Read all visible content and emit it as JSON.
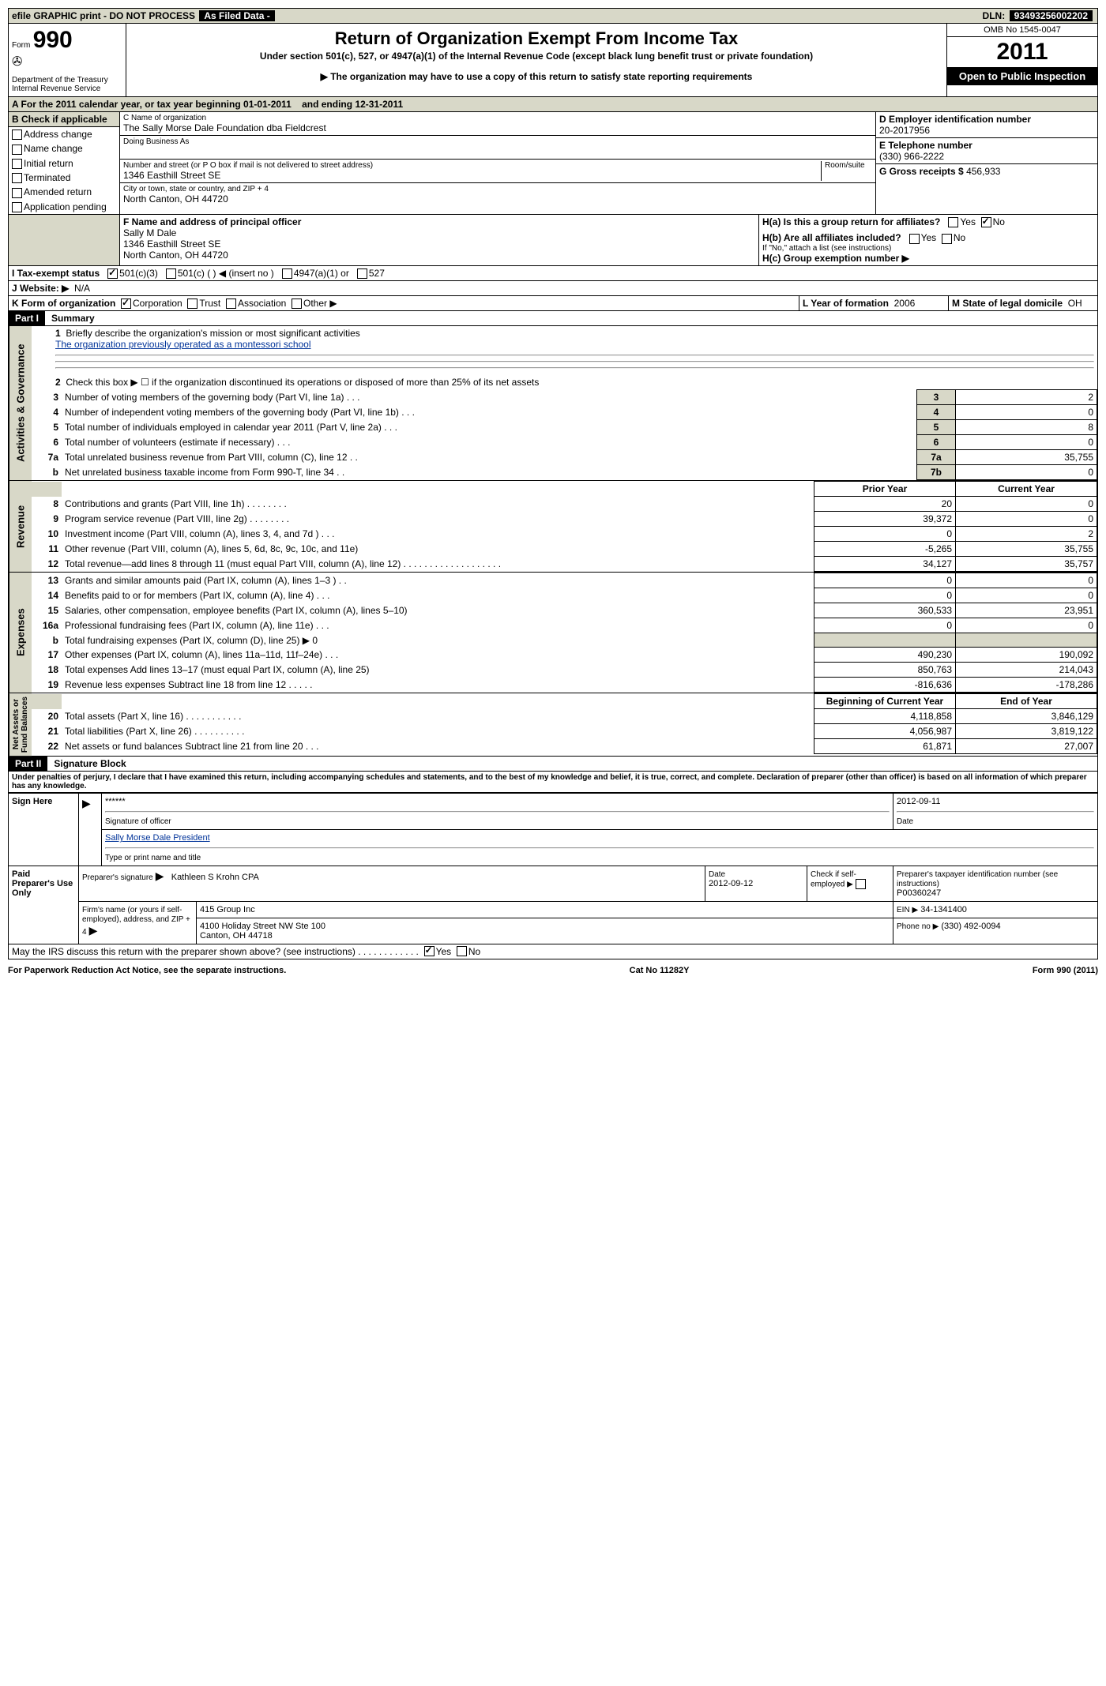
{
  "top_bar": {
    "label1": "efile GRAPHIC print - DO NOT PROCESS",
    "black1": "As Filed Data - ",
    "dln_label": "DLN:",
    "dln": "93493256002202"
  },
  "header": {
    "form": "Form",
    "form_no": "990",
    "dept": "Department of the Treasury\nInternal Revenue Service",
    "title": "Return of Organization Exempt From Income Tax",
    "subtitle1": "Under section 501(c), 527, or 4947(a)(1) of the Internal Revenue Code (except black lung benefit trust or private foundation)",
    "subtitle2": "▶ The organization may have to use a copy of this return to satisfy state reporting requirements",
    "omb": "OMB No  1545-0047",
    "year": "2011",
    "inspect": "Open to Public Inspection"
  },
  "period": {
    "label_a": "A  For the 2011 calendar year, or tax year beginning",
    "begin": "01-01-2011",
    "mid": "and ending",
    "end": "12-31-2011"
  },
  "section_b": {
    "header": "B  Check if applicable",
    "items": [
      "Address change",
      "Name change",
      "Initial return",
      "Terminated",
      "Amended return",
      "Application pending"
    ]
  },
  "section_c": {
    "name_label": "C Name of organization",
    "name": "The Sally Morse Dale Foundation dba Fieldcrest",
    "dba_label": "Doing Business As",
    "street_label": "Number and street (or P O  box if mail is not delivered to street address)",
    "room_label": "Room/suite",
    "street": "1346 Easthill Street SE",
    "city_label": "City or town, state or country, and ZIP + 4",
    "city": "North Canton, OH  44720"
  },
  "section_d": {
    "label": "D Employer identification number",
    "value": "20-2017956"
  },
  "section_e": {
    "label": "E Telephone number",
    "value": "(330) 966-2222"
  },
  "section_g": {
    "label": "G Gross receipts $",
    "value": "456,933"
  },
  "section_f": {
    "label": "F  Name and address of principal officer",
    "name": "Sally M Dale",
    "street": "1346 Easthill Street SE",
    "city": "North Canton, OH  44720"
  },
  "section_h": {
    "a": "H(a)  Is this a group return for affiliates?",
    "b": "H(b)  Are all affiliates included?",
    "b_note": "If \"No,\" attach a list  (see instructions)",
    "c": "H(c)  Group exemption number ▶"
  },
  "section_i": {
    "label": "I  Tax-exempt status",
    "opts": [
      "501(c)(3)",
      "501(c) (   ) ◀ (insert no )",
      "4947(a)(1) or",
      "527"
    ]
  },
  "section_j": {
    "label": "J  Website: ▶",
    "value": "N/A"
  },
  "section_k": {
    "label": "K Form of organization",
    "opts": [
      "Corporation",
      "Trust",
      "Association",
      "Other ▶"
    ]
  },
  "section_l": {
    "label": "L Year of formation",
    "value": "2006"
  },
  "section_m": {
    "label": "M State of legal domicile",
    "value": "OH"
  },
  "part1": {
    "tag": "Part I",
    "title": "Summary"
  },
  "summary": {
    "line1_label": "Briefly describe the organization's mission or most significant activities",
    "line1_value": "The organization previously operated as a montessori school",
    "line2": "Check this box ▶ ☐ if the organization discontinued its operations or disposed of more than 25% of its net assets",
    "governance_rows": [
      {
        "n": "3",
        "label": "Number of voting members of the governing body (Part VI, line 1a)   .   .   .",
        "k": "3",
        "v": "2"
      },
      {
        "n": "4",
        "label": "Number of independent voting members of the governing body (Part VI, line 1b)   .   .   .",
        "k": "4",
        "v": "0"
      },
      {
        "n": "5",
        "label": "Total number of individuals employed in calendar year 2011 (Part V, line 2a)   .   .   .",
        "k": "5",
        "v": "8"
      },
      {
        "n": "6",
        "label": "Total number of volunteers (estimate if necessary)   .   .   .",
        "k": "6",
        "v": "0"
      },
      {
        "n": "7a",
        "label": "Total unrelated business revenue from Part VIII, column (C), line 12   .   .",
        "k": "7a",
        "v": "35,755"
      },
      {
        "n": "b",
        "label": "Net unrelated business taxable income from Form 990-T, line 34   .   .",
        "k": "7b",
        "v": "0"
      }
    ],
    "col_headers": [
      "Prior Year",
      "Current Year"
    ],
    "revenue_rows": [
      {
        "n": "8",
        "label": "Contributions and grants (Part VIII, line 1h)   .   .   .   .   .   .   .   .",
        "py": "20",
        "cy": "0"
      },
      {
        "n": "9",
        "label": "Program service revenue (Part VIII, line 2g)   .   .   .   .   .   .   .   .",
        "py": "39,372",
        "cy": "0"
      },
      {
        "n": "10",
        "label": "Investment income (Part VIII, column (A), lines 3, 4, and 7d )   .   .   .",
        "py": "0",
        "cy": "2"
      },
      {
        "n": "11",
        "label": "Other revenue (Part VIII, column (A), lines 5, 6d, 8c, 9c, 10c, and 11e)",
        "py": "-5,265",
        "cy": "35,755"
      },
      {
        "n": "12",
        "label": "Total revenue—add lines 8 through 11 (must equal Part VIII, column (A), line 12)   .   .   .   .   .   .   .   .   .   .   .   .   .   .   .   .   .   .   .",
        "py": "34,127",
        "cy": "35,757"
      }
    ],
    "expense_rows": [
      {
        "n": "13",
        "label": "Grants and similar amounts paid (Part IX, column (A), lines 1–3 )   .   .",
        "py": "0",
        "cy": "0"
      },
      {
        "n": "14",
        "label": "Benefits paid to or for members (Part IX, column (A), line 4)   .   .   .",
        "py": "0",
        "cy": "0"
      },
      {
        "n": "15",
        "label": "Salaries, other compensation, employee benefits (Part IX, column (A), lines 5–10)",
        "py": "360,533",
        "cy": "23,951"
      },
      {
        "n": "16a",
        "label": "Professional fundraising fees (Part IX, column (A), line 11e)   .   .   .",
        "py": "0",
        "cy": "0"
      },
      {
        "n": "b",
        "label": "Total fundraising expenses (Part IX, column (D), line 25) ▶ 0",
        "py": "",
        "cy": ""
      },
      {
        "n": "17",
        "label": "Other expenses (Part IX, column (A), lines 11a–11d, 11f–24e)   .   .   .",
        "py": "490,230",
        "cy": "190,092"
      },
      {
        "n": "18",
        "label": "Total expenses  Add lines 13–17 (must equal Part IX, column (A), line 25)",
        "py": "850,763",
        "cy": "214,043"
      },
      {
        "n": "19",
        "label": "Revenue less expenses  Subtract line 18 from line 12   .   .   .   .   .",
        "py": "-816,636",
        "cy": "-178,286"
      }
    ],
    "balance_headers": [
      "Beginning of Current Year",
      "End of Year"
    ],
    "balance_rows": [
      {
        "n": "20",
        "label": "Total assets (Part X, line 16)   .   .   .   .   .   .   .   .   .   .   .",
        "py": "4,118,858",
        "cy": "3,846,129"
      },
      {
        "n": "21",
        "label": "Total liabilities (Part X, line 26)   .   .   .   .   .   .   .   .   .   .",
        "py": "4,056,987",
        "cy": "3,819,122"
      },
      {
        "n": "22",
        "label": "Net assets or fund balances  Subtract line 21 from line 20   .   .   .",
        "py": "61,871",
        "cy": "27,007"
      }
    ],
    "vert_labels": [
      "Activities & Governance",
      "Revenue",
      "Expenses",
      "Net Assets or\nFund Balances"
    ]
  },
  "part2": {
    "tag": "Part II",
    "title": "Signature Block"
  },
  "sig": {
    "declaration": "Under penalties of perjury, I declare that I have examined this return, including accompanying schedules and statements, and to the best of my knowledge and belief, it is true, correct, and complete. Declaration of preparer (other than officer) is based on all information of which preparer has any knowledge.",
    "sign_here": "Sign Here",
    "officer_sig": "******",
    "officer_sig_label": "Signature of officer",
    "date": "2012-09-11",
    "date_label": "Date",
    "officer_name": "Sally Morse Dale President",
    "officer_name_label": "Type or print name and title",
    "paid_label": "Paid Preparer's Use Only",
    "prep_sig_label": "Preparer's signature",
    "prep_name": "Kathleen S Krohn CPA",
    "prep_date_label": "Date",
    "prep_date": "2012-09-12",
    "self_emp_label": "Check if self-employed ▶",
    "ptin_label": "Preparer's taxpayer identification number (see instructions)",
    "ptin": "P00360247",
    "firm_label": "Firm's name (or yours if self-employed), address, and ZIP + 4",
    "firm_name": "415 Group Inc",
    "firm_addr1": "4100 Holiday Street NW Ste 100",
    "firm_addr2": "Canton, OH  44718",
    "ein_label": "EIN ▶",
    "ein": "34-1341400",
    "phone_label": "Phone no  ▶",
    "phone": "(330) 492-0094",
    "discuss": "May the IRS discuss this return with the preparer shown above? (see instructions)   .   .   .   .   .   .   .   .   .   .   .   ."
  },
  "footer": {
    "left": "For Paperwork Reduction Act Notice, see the separate instructions.",
    "mid": "Cat No  11282Y",
    "right": "Form 990 (2011)"
  }
}
